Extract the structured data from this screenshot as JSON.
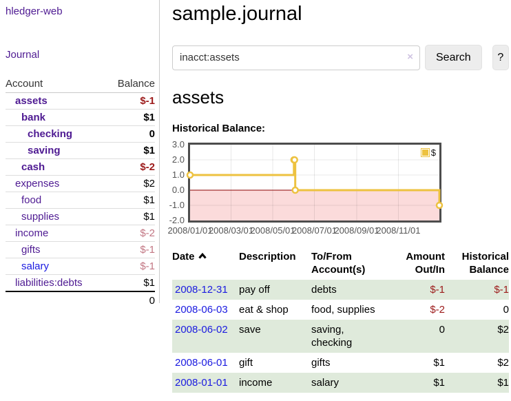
{
  "app": {
    "brand": "hledger-web",
    "nav_journal": "Journal"
  },
  "colors": {
    "accent_purple": "#4e1a92",
    "link_blue": "#1a1ae0",
    "negative_strong": "#9c1a1a",
    "negative_muted": "#c27683",
    "row_green": "#dfeadb",
    "chart_line_gold": "#EDC240"
  },
  "sidebar": {
    "header": {
      "account": "Account",
      "balance": "Balance"
    },
    "accounts": [
      {
        "name": "assets",
        "depth": 1,
        "bold": true,
        "balance": "$-1",
        "style": "neg"
      },
      {
        "name": "bank",
        "depth": 2,
        "bold": true,
        "balance": "$1",
        "style": ""
      },
      {
        "name": "checking",
        "depth": 3,
        "bold": true,
        "balance": "0",
        "style": ""
      },
      {
        "name": "saving",
        "depth": 3,
        "bold": true,
        "balance": "$1",
        "style": ""
      },
      {
        "name": "cash",
        "depth": 2,
        "bold": true,
        "balance": "$-2",
        "style": "neg"
      },
      {
        "name": "expenses",
        "depth": 1,
        "bold": false,
        "balance": "$2",
        "style": ""
      },
      {
        "name": "food",
        "depth": 2,
        "bold": false,
        "balance": "$1",
        "style": ""
      },
      {
        "name": "supplies",
        "depth": 2,
        "bold": false,
        "balance": "$1",
        "style": ""
      },
      {
        "name": "income",
        "depth": 1,
        "bold": false,
        "balance": "$-2",
        "style": "neg-muted"
      },
      {
        "name": "gifts",
        "depth": 2,
        "bold": false,
        "balance": "$-1",
        "style": "neg-muted"
      },
      {
        "name": "salary",
        "depth": 2,
        "bold": false,
        "blue": true,
        "balance": "$-1",
        "style": "neg-muted"
      },
      {
        "name": "liabilities:debts",
        "depth": 1,
        "bold": false,
        "balance": "$1",
        "style": ""
      }
    ],
    "total": "0"
  },
  "main": {
    "title": "sample.journal",
    "search": {
      "value": "inacct:assets",
      "clear": "×",
      "button": "Search",
      "help": "?"
    },
    "account_heading": "assets",
    "chart_label": "Historical Balance:"
  },
  "chart_data": {
    "type": "line",
    "title": "Historical Balance",
    "step": true,
    "x": [
      "2008-01-01",
      "2008-06-01",
      "2008-06-02",
      "2008-06-03",
      "2008-12-31"
    ],
    "series": [
      {
        "name": "$",
        "values": [
          1.0,
          2.0,
          2.0,
          0.0,
          -1.0
        ]
      }
    ],
    "ylim": [
      -2,
      3
    ],
    "yticks": [
      "3.0",
      "2.0",
      "1.0",
      "0.0",
      "-1.0",
      "-2.0"
    ],
    "xticks": [
      "2008/01/01",
      "2008/03/01",
      "2008/05/01",
      "2008/07/01",
      "2008/09/01",
      "2008/11/01"
    ],
    "xrange": [
      "2008-01-01",
      "2008-12-31"
    ],
    "legend_position": "top-right",
    "grid": true,
    "colors": {
      "line": "#EDC240",
      "negative_region": "#fbdbdb",
      "zero_line": "#8b0000"
    }
  },
  "table": {
    "headers": {
      "date": "Date",
      "description": "Description",
      "tofrom1": "To/From",
      "tofrom2": "Account(s)",
      "amount1": "Amount",
      "amount2": "Out/In",
      "hist1": "Historical",
      "hist2": "Balance"
    },
    "rows": [
      {
        "date": "2008-12-31",
        "description": "pay off",
        "accounts": "debts",
        "amount": "$-1",
        "amount_neg": true,
        "balance": "$-1",
        "balance_neg": true,
        "shaded": true
      },
      {
        "date": "2008-06-03",
        "description": "eat & shop",
        "accounts": "food, supplies",
        "amount": "$-2",
        "amount_neg": true,
        "balance": "0",
        "balance_neg": false,
        "shaded": false
      },
      {
        "date": "2008-06-02",
        "description": "save",
        "accounts": "saving,\nchecking",
        "amount": "0",
        "amount_neg": false,
        "balance": "$2",
        "balance_neg": false,
        "shaded": true
      },
      {
        "date": "2008-06-01",
        "description": "gift",
        "accounts": "gifts",
        "amount": "$1",
        "amount_neg": false,
        "balance": "$2",
        "balance_neg": false,
        "shaded": false
      },
      {
        "date": "2008-01-01",
        "description": "income",
        "accounts": "salary",
        "amount": "$1",
        "amount_neg": false,
        "balance": "$1",
        "balance_neg": false,
        "shaded": true
      }
    ]
  }
}
